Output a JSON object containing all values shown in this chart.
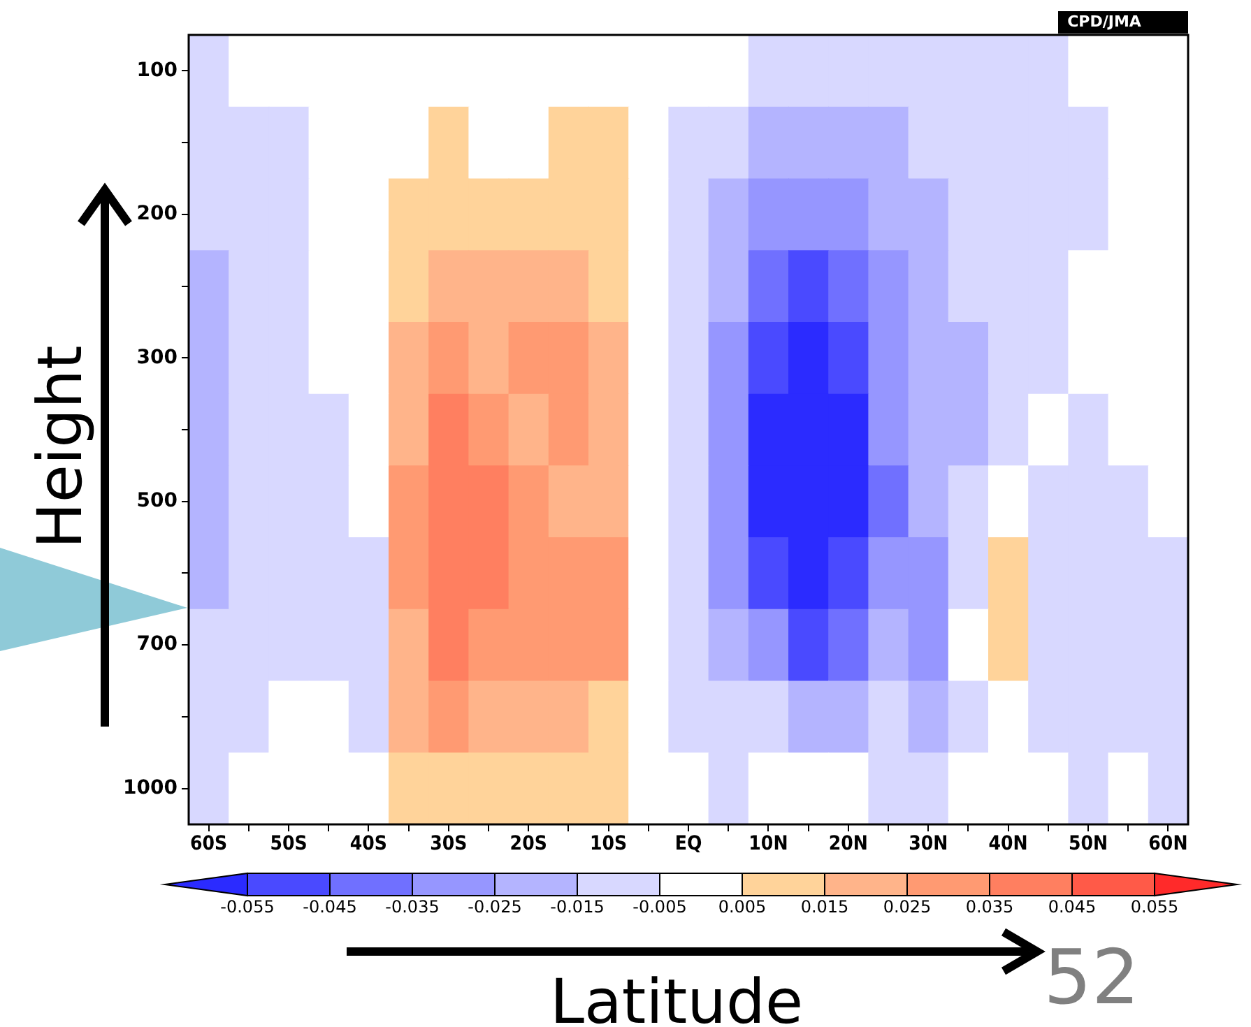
{
  "chart_data": {
    "type": "heatmap",
    "xlabel": "Latitude",
    "ylabel": "Height",
    "annotations": [
      "CPD/JMA",
      "52"
    ],
    "categories": [
      "60S",
      null,
      "50S",
      null,
      "40S",
      null,
      "30S",
      null,
      "20S",
      null,
      "10S",
      null,
      "EQ",
      null,
      "10N",
      null,
      "20N",
      null,
      "30N",
      null,
      "40N",
      null,
      "50N",
      null,
      "60N"
    ],
    "y_categories": [
      "100",
      null,
      "200",
      null,
      "300",
      null,
      "500",
      null,
      "700",
      null,
      "1000"
    ],
    "cells": [
      [
        -0.01,
        0,
        0,
        0,
        0,
        0,
        0,
        0,
        0,
        0,
        0,
        0,
        0,
        0,
        -0.01,
        -0.01,
        -0.01,
        -0.01,
        -0.01,
        -0.01,
        -0.01,
        -0.01,
        0,
        0,
        0
      ],
      [
        -0.01,
        -0.01,
        -0.01,
        0,
        0,
        0,
        0.01,
        0,
        0,
        0.01,
        0.01,
        0,
        -0.01,
        -0.01,
        -0.02,
        -0.02,
        -0.02,
        -0.02,
        -0.01,
        -0.01,
        -0.01,
        -0.01,
        -0.01,
        0,
        0
      ],
      [
        -0.01,
        -0.01,
        -0.01,
        0,
        0,
        0.01,
        0.01,
        0.01,
        0.01,
        0.01,
        0.01,
        0,
        -0.01,
        -0.02,
        -0.03,
        -0.03,
        -0.03,
        -0.02,
        -0.02,
        -0.01,
        -0.01,
        -0.01,
        -0.01,
        0,
        0
      ],
      [
        -0.02,
        -0.01,
        -0.01,
        0,
        0,
        0.01,
        0.02,
        0.02,
        0.02,
        0.02,
        0.01,
        0,
        -0.01,
        -0.02,
        -0.04,
        -0.05,
        -0.04,
        -0.03,
        -0.02,
        -0.01,
        -0.01,
        -0.01,
        0,
        0,
        0
      ],
      [
        -0.02,
        -0.01,
        -0.01,
        0,
        0,
        0.02,
        0.03,
        0.02,
        0.03,
        0.03,
        0.02,
        0,
        -0.01,
        -0.03,
        -0.05,
        -0.06,
        -0.05,
        -0.03,
        -0.02,
        -0.02,
        -0.01,
        -0.01,
        0,
        0,
        0
      ],
      [
        -0.02,
        -0.01,
        -0.01,
        -0.01,
        0,
        0.02,
        0.04,
        0.03,
        0.02,
        0.03,
        0.02,
        0,
        -0.01,
        -0.03,
        -0.06,
        -0.06,
        -0.06,
        -0.03,
        -0.02,
        -0.02,
        -0.01,
        0,
        -0.01,
        0,
        0
      ],
      [
        -0.02,
        -0.01,
        -0.01,
        -0.01,
        0,
        0.03,
        0.04,
        0.04,
        0.03,
        0.02,
        0.02,
        0,
        -0.01,
        -0.03,
        -0.06,
        -0.06,
        -0.06,
        -0.04,
        -0.02,
        -0.01,
        0,
        -0.01,
        -0.01,
        -0.01,
        0
      ],
      [
        -0.02,
        -0.01,
        -0.01,
        -0.01,
        -0.01,
        0.03,
        0.04,
        0.04,
        0.03,
        0.03,
        0.03,
        0,
        -0.01,
        -0.03,
        -0.05,
        -0.06,
        -0.05,
        -0.03,
        -0.03,
        -0.01,
        0.01,
        -0.01,
        -0.01,
        -0.01,
        -0.01
      ],
      [
        -0.01,
        -0.01,
        -0.01,
        -0.01,
        -0.01,
        0.02,
        0.04,
        0.03,
        0.03,
        0.03,
        0.03,
        0,
        -0.01,
        -0.02,
        -0.03,
        -0.05,
        -0.04,
        -0.02,
        -0.03,
        0,
        0.01,
        -0.01,
        -0.01,
        -0.01,
        -0.01
      ],
      [
        -0.01,
        -0.01,
        0,
        0,
        -0.01,
        0.02,
        0.03,
        0.02,
        0.02,
        0.02,
        0.01,
        0,
        -0.01,
        -0.01,
        -0.01,
        -0.02,
        -0.02,
        -0.01,
        -0.02,
        -0.01,
        0,
        -0.01,
        -0.01,
        -0.01,
        -0.01
      ],
      [
        -0.01,
        0,
        0,
        0,
        0,
        0.01,
        0.01,
        0.01,
        0.01,
        0.01,
        0.01,
        0,
        0,
        -0.01,
        0,
        0,
        0,
        -0.01,
        -0.01,
        0,
        0,
        0,
        -0.01,
        0,
        -0.01
      ]
    ],
    "clim": [
      -0.065,
      0.065
    ],
    "cticks": [
      -0.055,
      -0.045,
      -0.035,
      -0.025,
      -0.015,
      -0.005,
      0.005,
      0.015,
      0.025,
      0.035,
      0.045,
      0.055
    ]
  }
}
